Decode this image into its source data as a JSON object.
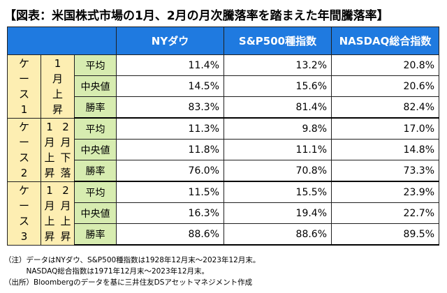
{
  "title": "【図表：米国株式市場の1月、2月の月次騰落率を踏まえた年間騰落率】",
  "columns": [
    "NYダウ",
    "S&P500種指数",
    "NASDAQ総合指数"
  ],
  "cases": [
    {
      "label": [
        "ケ",
        "ー",
        "ス",
        "1"
      ],
      "condition_cols": [
        [
          "1",
          "月",
          "上",
          "昇"
        ]
      ],
      "rows": [
        {
          "metric": "平均",
          "values": [
            "11.4%",
            "13.2%",
            "20.8%"
          ]
        },
        {
          "metric": "中央値",
          "values": [
            "14.5%",
            "15.6%",
            "20.6%"
          ]
        },
        {
          "metric": "勝率",
          "values": [
            "83.3%",
            "81.4%",
            "82.4%"
          ]
        }
      ]
    },
    {
      "label": [
        "ケ",
        "ー",
        "ス",
        "2"
      ],
      "condition_cols": [
        [
          "1",
          "月",
          "上",
          "昇"
        ],
        [
          "2",
          "月",
          "下",
          "落"
        ]
      ],
      "rows": [
        {
          "metric": "平均",
          "values": [
            "11.3%",
            "9.8%",
            "17.0%"
          ]
        },
        {
          "metric": "中央値",
          "values": [
            "11.8%",
            "11.1%",
            "14.8%"
          ]
        },
        {
          "metric": "勝率",
          "values": [
            "76.0%",
            "70.8%",
            "73.3%"
          ]
        }
      ]
    },
    {
      "label": [
        "ケ",
        "ー",
        "ス",
        "3"
      ],
      "condition_cols": [
        [
          "1",
          "月",
          "上",
          "昇"
        ],
        [
          "2",
          "月",
          "上",
          "昇"
        ]
      ],
      "rows": [
        {
          "metric": "平均",
          "values": [
            "11.5%",
            "15.5%",
            "23.9%"
          ]
        },
        {
          "metric": "中央値",
          "values": [
            "16.3%",
            "19.4%",
            "22.7%"
          ]
        },
        {
          "metric": "勝率",
          "values": [
            "88.6%",
            "88.6%",
            "89.5%"
          ]
        }
      ]
    }
  ],
  "notes": [
    "（注）データはNYダウ、S&P500種指数は1928年12月末～2023年12月末。",
    "　　　NASDAQ総合指数は1971年12月末～2023年12月末。",
    "（出所）Bloombergのデータを基に三井住友DSアセットマネジメント作成"
  ],
  "colors": {
    "header": "#1f7ae0",
    "case_bg": "#fdeeb2",
    "metric_bg": "#d7ecb0"
  }
}
